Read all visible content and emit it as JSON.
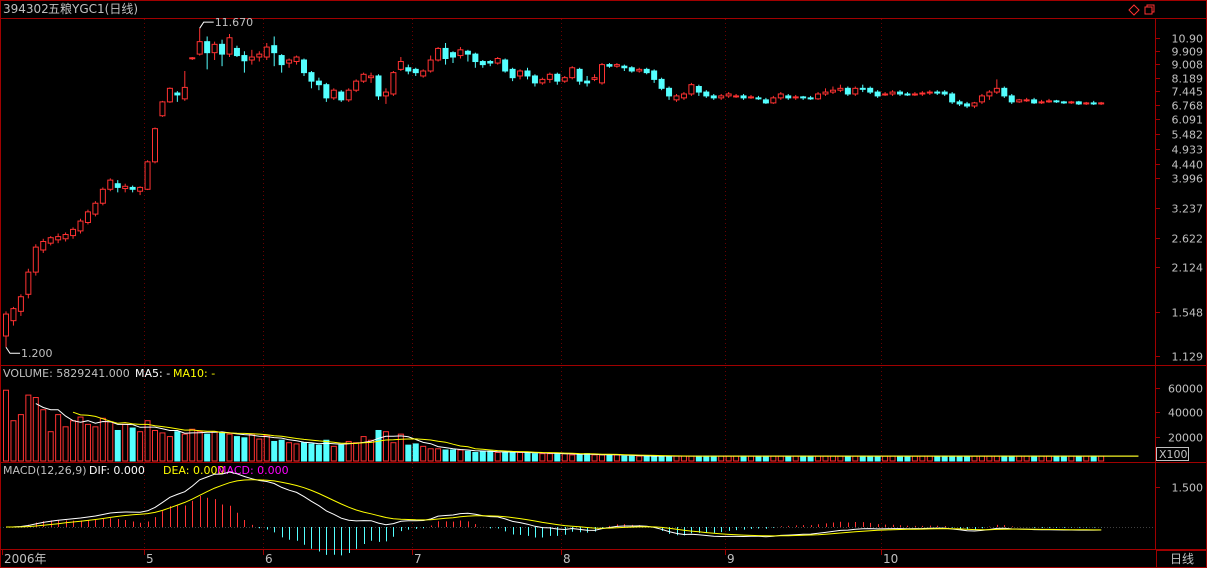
{
  "header": {
    "code": "394302",
    "name": "五粮YGC1(日线)",
    "icons": [
      "diamond-icon",
      "window-restore-icon"
    ]
  },
  "colors": {
    "up": "#ff3232",
    "down": "#54ffff",
    "frame": "#a00000",
    "axis_text": "#c0c0c0",
    "white_line": "#ffffff",
    "yellow_line": "#ffff00",
    "magenta": "#ff00ff"
  },
  "volume_panel": {
    "title": "VOLUME: 5829241.000",
    "ma5_label": "MA5: -",
    "ma10_label": "MA10: -",
    "ticks": [
      "60000",
      "40000",
      "20000"
    ],
    "unit": "X100"
  },
  "macd_panel": {
    "title": "MACD(12,26,9)",
    "dif_label": "DIF: 0.000",
    "dea_label": "DEA: 0.000",
    "macd_label": "MACD: 0.000",
    "ticks": [
      "1.500"
    ]
  },
  "x_axis": {
    "labels": [
      "2006年",
      "5",
      "6",
      "7",
      "8",
      "9",
      "10"
    ],
    "period_button": "日线"
  },
  "chart_data": {
    "type": "candlestick",
    "price_ticks": [
      "10.90",
      "9.909",
      "9.008",
      "8.189",
      "7.445",
      "6.768",
      "6.091",
      "5.482",
      "4.933",
      "4.440",
      "3.996",
      "3.237",
      "2.622",
      "2.124",
      "1.548",
      "1.129"
    ],
    "annotations": {
      "high": "11.670",
      "low": "1.200"
    },
    "high_value": 11.67,
    "low_value": 1.2,
    "month_starts": {
      "2006年": 0,
      "5": 19,
      "6": 35,
      "7": 55,
      "8": 75,
      "9": 97,
      "10": 118
    },
    "candles": [
      [
        1.3,
        1.52,
        1.2,
        1.55
      ],
      [
        1.45,
        1.58,
        1.4,
        1.6
      ],
      [
        1.55,
        1.72,
        1.5,
        1.75
      ],
      [
        1.75,
        2.05,
        1.7,
        2.1
      ],
      [
        2.05,
        2.45,
        2.0,
        2.5
      ],
      [
        2.4,
        2.55,
        2.35,
        2.6
      ],
      [
        2.52,
        2.62,
        2.48,
        2.65
      ],
      [
        2.58,
        2.64,
        2.52,
        2.7
      ],
      [
        2.6,
        2.68,
        2.55,
        2.72
      ],
      [
        2.66,
        2.78,
        2.6,
        2.82
      ],
      [
        2.75,
        2.95,
        2.7,
        3.0
      ],
      [
        2.92,
        3.15,
        2.88,
        3.2
      ],
      [
        3.1,
        3.35,
        3.05,
        3.4
      ],
      [
        3.35,
        3.7,
        3.3,
        3.75
      ],
      [
        3.7,
        3.95,
        3.65,
        4.0
      ],
      [
        3.85,
        3.75,
        3.62,
        3.95
      ],
      [
        3.72,
        3.78,
        3.62,
        3.85
      ],
      [
        3.75,
        3.7,
        3.62,
        3.8
      ],
      [
        3.65,
        3.75,
        3.55,
        3.78
      ],
      [
        3.7,
        4.5,
        3.68,
        4.55
      ],
      [
        4.5,
        5.7,
        4.45,
        5.75
      ],
      [
        6.25,
        6.9,
        6.2,
        6.95
      ],
      [
        6.9,
        7.6,
        6.85,
        7.65
      ],
      [
        7.35,
        7.25,
        6.9,
        7.45
      ],
      [
        7.05,
        7.65,
        6.95,
        8.6
      ],
      [
        9.4,
        9.45,
        9.3,
        9.5
      ],
      [
        9.7,
        10.6,
        9.6,
        11.67
      ],
      [
        10.6,
        9.8,
        8.7,
        11.0
      ],
      [
        9.8,
        10.4,
        9.3,
        10.6
      ],
      [
        10.4,
        9.7,
        8.9,
        10.75
      ],
      [
        9.7,
        10.9,
        9.5,
        11.2
      ],
      [
        10.1,
        9.6,
        9.5,
        10.3
      ],
      [
        9.6,
        9.25,
        8.5,
        9.9
      ],
      [
        9.3,
        9.5,
        9.0,
        10.0
      ],
      [
        9.5,
        9.7,
        9.2,
        9.9
      ],
      [
        9.5,
        10.2,
        9.3,
        10.5
      ],
      [
        10.3,
        9.8,
        8.9,
        11.0
      ],
      [
        9.6,
        9.0,
        8.5,
        9.7
      ],
      [
        9.1,
        9.3,
        8.8,
        9.4
      ],
      [
        9.2,
        9.5,
        9.0,
        9.6
      ],
      [
        9.3,
        8.5,
        8.3,
        9.4
      ],
      [
        8.5,
        8.0,
        7.6,
        8.6
      ],
      [
        8.0,
        7.8,
        7.5,
        8.2
      ],
      [
        7.8,
        7.1,
        6.9,
        7.9
      ],
      [
        7.1,
        7.5,
        7.0,
        7.6
      ],
      [
        7.4,
        7.0,
        6.9,
        7.5
      ],
      [
        7.0,
        7.5,
        6.9,
        7.6
      ],
      [
        7.5,
        8.0,
        7.4,
        8.1
      ],
      [
        8.0,
        8.4,
        7.9,
        8.5
      ],
      [
        8.2,
        8.3,
        7.9,
        8.5
      ],
      [
        8.3,
        7.2,
        7.0,
        8.4
      ],
      [
        7.2,
        7.4,
        6.8,
        7.6
      ],
      [
        7.3,
        8.5,
        7.2,
        8.6
      ],
      [
        8.7,
        9.2,
        8.6,
        9.5
      ],
      [
        8.8,
        8.6,
        8.4,
        9.0
      ],
      [
        8.7,
        8.5,
        8.3,
        8.8
      ],
      [
        8.3,
        8.6,
        8.2,
        8.7
      ],
      [
        8.6,
        9.3,
        8.5,
        9.6
      ],
      [
        9.3,
        10.1,
        9.2,
        10.2
      ],
      [
        10.1,
        9.4,
        9.0,
        10.5
      ],
      [
        9.8,
        9.5,
        9.1,
        9.9
      ],
      [
        9.6,
        10.0,
        9.4,
        10.2
      ],
      [
        9.9,
        9.7,
        9.2,
        10.0
      ],
      [
        9.7,
        9.2,
        8.8,
        9.8
      ],
      [
        9.2,
        9.0,
        8.8,
        9.3
      ],
      [
        9.2,
        9.1,
        8.9,
        9.3
      ],
      [
        9.1,
        9.4,
        9.0,
        9.5
      ],
      [
        9.3,
        8.6,
        8.5,
        9.4
      ],
      [
        8.7,
        8.2,
        8.0,
        8.8
      ],
      [
        8.3,
        8.6,
        8.1,
        8.7
      ],
      [
        8.6,
        8.3,
        8.1,
        8.8
      ],
      [
        8.3,
        7.9,
        7.7,
        8.4
      ],
      [
        7.9,
        8.1,
        7.8,
        8.2
      ],
      [
        8.1,
        8.4,
        7.9,
        8.5
      ],
      [
        8.4,
        8.0,
        7.8,
        8.5
      ],
      [
        8.0,
        8.2,
        7.9,
        8.3
      ],
      [
        8.2,
        8.8,
        8.1,
        8.9
      ],
      [
        8.7,
        8.0,
        7.8,
        8.8
      ],
      [
        8.0,
        7.9,
        7.7,
        8.3
      ],
      [
        8.1,
        8.2,
        8.0,
        8.4
      ],
      [
        7.9,
        9.0,
        7.8,
        9.1
      ],
      [
        9.0,
        8.9,
        8.8,
        9.1
      ],
      [
        8.9,
        9.0,
        8.8,
        9.1
      ],
      [
        8.9,
        8.8,
        8.6,
        9.0
      ],
      [
        8.8,
        8.6,
        8.5,
        8.9
      ],
      [
        8.6,
        8.7,
        8.5,
        8.8
      ],
      [
        8.7,
        8.5,
        8.4,
        8.8
      ],
      [
        8.6,
        8.1,
        7.9,
        8.7
      ],
      [
        8.1,
        7.6,
        7.5,
        8.2
      ],
      [
        7.6,
        7.2,
        7.0,
        7.7
      ],
      [
        7.0,
        7.2,
        6.9,
        7.3
      ],
      [
        7.1,
        7.3,
        7.0,
        7.4
      ],
      [
        7.3,
        7.8,
        7.2,
        7.9
      ],
      [
        7.7,
        7.4,
        7.2,
        7.8
      ],
      [
        7.4,
        7.2,
        7.1,
        7.5
      ],
      [
        7.2,
        7.1,
        7.0,
        7.3
      ],
      [
        7.1,
        7.2,
        7.0,
        7.3
      ],
      [
        7.2,
        7.3,
        7.1,
        7.4
      ],
      [
        7.2,
        7.2,
        7.1,
        7.3
      ],
      [
        7.2,
        7.1,
        7.0,
        7.3
      ],
      [
        7.1,
        7.15,
        7.05,
        7.25
      ],
      [
        7.1,
        7.05,
        7.0,
        7.2
      ],
      [
        7.0,
        6.85,
        6.8,
        7.1
      ],
      [
        6.85,
        7.1,
        6.8,
        7.2
      ],
      [
        7.1,
        7.3,
        7.0,
        7.4
      ],
      [
        7.2,
        7.1,
        7.0,
        7.3
      ],
      [
        7.1,
        7.15,
        7.0,
        7.25
      ],
      [
        7.15,
        7.1,
        7.0,
        7.2
      ],
      [
        7.1,
        7.05,
        7.0,
        7.2
      ],
      [
        7.05,
        7.3,
        7.0,
        7.4
      ],
      [
        7.3,
        7.4,
        7.2,
        7.6
      ],
      [
        7.4,
        7.5,
        7.3,
        7.7
      ],
      [
        7.5,
        7.6,
        7.4,
        7.8
      ],
      [
        7.6,
        7.3,
        7.2,
        7.7
      ],
      [
        7.3,
        7.6,
        7.2,
        7.7
      ],
      [
        7.6,
        7.55,
        7.4,
        7.8
      ],
      [
        7.6,
        7.4,
        7.3,
        7.7
      ],
      [
        7.4,
        7.2,
        7.1,
        7.5
      ],
      [
        7.3,
        7.3,
        7.2,
        7.4
      ],
      [
        7.3,
        7.4,
        7.2,
        7.5
      ],
      [
        7.4,
        7.3,
        7.2,
        7.5
      ],
      [
        7.3,
        7.25,
        7.2,
        7.4
      ],
      [
        7.3,
        7.3,
        7.2,
        7.4
      ],
      [
        7.3,
        7.35,
        7.2,
        7.45
      ],
      [
        7.35,
        7.4,
        7.25,
        7.5
      ],
      [
        7.4,
        7.35,
        7.25,
        7.5
      ],
      [
        7.4,
        7.3,
        7.2,
        7.5
      ],
      [
        7.3,
        6.9,
        6.8,
        7.4
      ],
      [
        6.9,
        6.8,
        6.7,
        7.0
      ],
      [
        6.8,
        6.7,
        6.6,
        6.9
      ],
      [
        6.7,
        6.85,
        6.6,
        6.9
      ],
      [
        6.9,
        7.2,
        6.8,
        7.3
      ],
      [
        7.2,
        7.4,
        7.0,
        7.5
      ],
      [
        7.4,
        7.6,
        7.3,
        8.1
      ],
      [
        7.6,
        7.2,
        7.1,
        7.7
      ],
      [
        7.2,
        6.9,
        6.8,
        7.3
      ],
      [
        6.9,
        7.0,
        6.85,
        7.05
      ],
      [
        7.0,
        7.0,
        6.9,
        7.1
      ],
      [
        7.0,
        6.85,
        6.8,
        7.1
      ],
      [
        6.85,
        6.9,
        6.8,
        7.0
      ],
      [
        6.9,
        6.95,
        6.85,
        7.05
      ],
      [
        6.95,
        6.9,
        6.85,
        7.0
      ],
      [
        6.9,
        6.85,
        6.8,
        6.95
      ],
      [
        6.85,
        6.9,
        6.8,
        6.95
      ],
      [
        6.9,
        6.8,
        6.75,
        6.95
      ],
      [
        6.8,
        6.85,
        6.75,
        6.9
      ],
      [
        6.85,
        6.8,
        6.75,
        6.95
      ],
      [
        6.8,
        6.85,
        6.75,
        6.9
      ]
    ],
    "volumes": [
      58000,
      33000,
      38000,
      54000,
      52000,
      42000,
      24000,
      38000,
      28000,
      33000,
      36000,
      30000,
      28000,
      35000,
      32000,
      25000,
      30000,
      27000,
      24000,
      33000,
      25000,
      23000,
      20000,
      24000,
      22000,
      26000,
      24000,
      22000,
      24000,
      23000,
      22000,
      20000,
      19000,
      22000,
      18000,
      21000,
      16000,
      17000,
      15000,
      14000,
      15000,
      14000,
      13000,
      17000,
      12000,
      13000,
      16000,
      15000,
      20000,
      17000,
      25000,
      24000,
      15000,
      22000,
      13000,
      14000,
      12000,
      10000,
      10000,
      9000,
      9000,
      9000,
      8000,
      7000,
      8000,
      8000,
      7000,
      7000,
      7000,
      7000,
      7000,
      6000,
      6000,
      6000,
      6000,
      6000,
      5000,
      5000,
      6000,
      5000,
      5000,
      5000,
      5000,
      4000,
      4000,
      4000,
      4000,
      4000,
      4000,
      4000,
      4000,
      4000,
      4000,
      4000,
      4000,
      4000,
      4000,
      4000,
      4000,
      4000,
      4000,
      4000,
      4000,
      4000,
      4000,
      4000,
      4000,
      4000,
      4000,
      4000,
      4000,
      4000,
      4000,
      4000,
      4000,
      4000,
      4000,
      4000,
      4000,
      4000,
      4000,
      4000,
      4000,
      4000,
      4000,
      4000,
      4000,
      4000,
      4000,
      4000,
      4000,
      4000,
      4000,
      4000,
      4000,
      4000,
      4000,
      4000,
      4000,
      4000,
      4000,
      4000,
      4000,
      4000,
      4000,
      4000,
      4000,
      4000,
      4000,
      4000,
      4000,
      4000,
      4000
    ]
  }
}
